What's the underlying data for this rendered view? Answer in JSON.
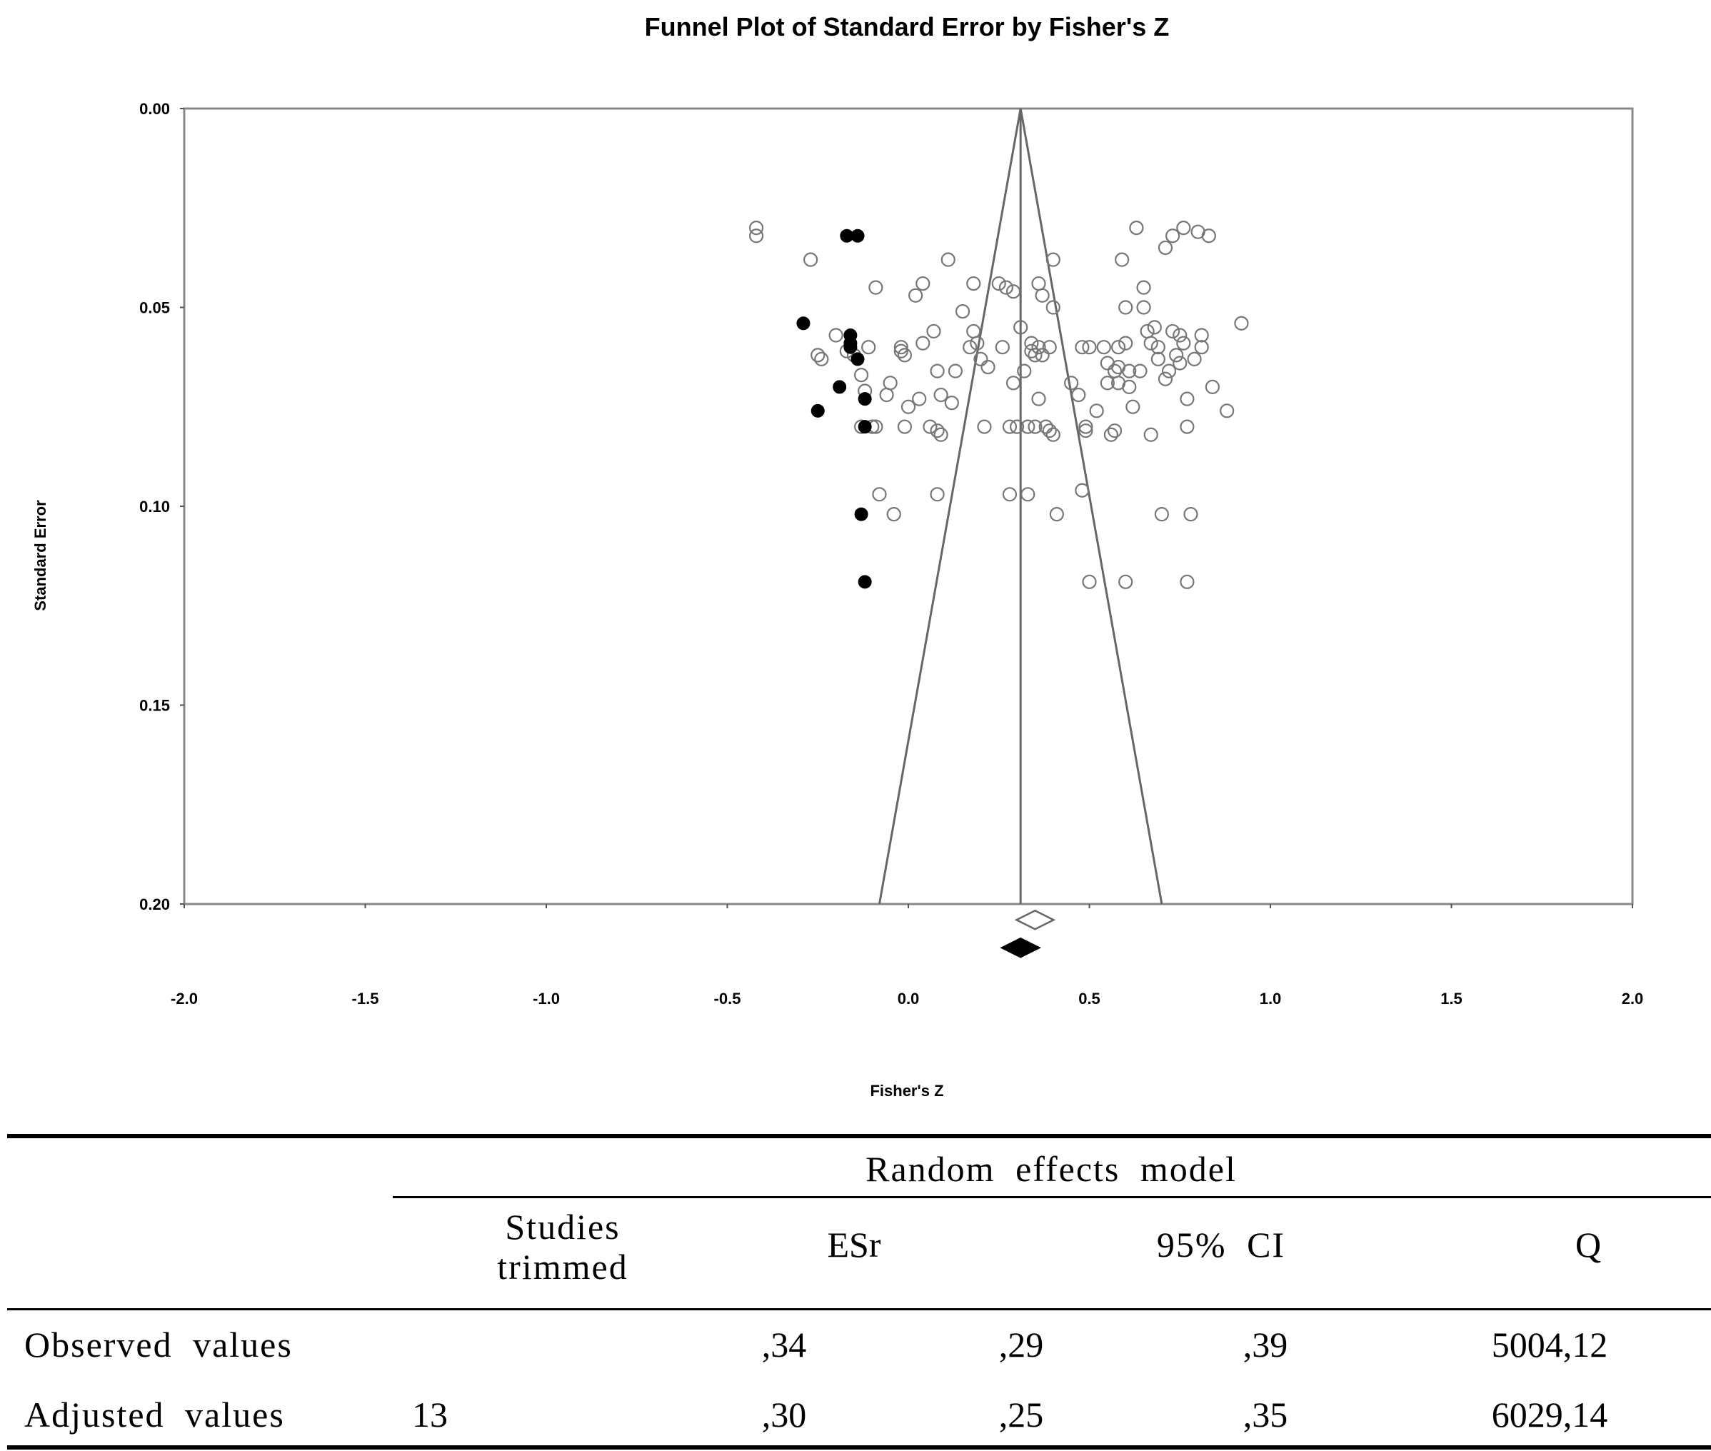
{
  "chart_data": {
    "type": "scatter",
    "title": "Funnel Plot of Standard Error by Fisher's Z",
    "xlabel": "Fisher's Z",
    "ylabel": "Standard Error",
    "xlim": [
      -2.0,
      2.0
    ],
    "ylim": [
      0.2,
      0.0
    ],
    "y_inverted": true,
    "x_ticks": [
      "-2.0",
      "-1.5",
      "-1.0",
      "-0.5",
      "0.0",
      "0.5",
      "1.0",
      "1.5",
      "2.0"
    ],
    "y_ticks": [
      "0.00",
      "0.05",
      "0.10",
      "0.15",
      "0.20"
    ],
    "grid": false,
    "funnel": {
      "center": 0.31,
      "apex_se": 0.0,
      "base_se": 0.2,
      "base_left": -0.08,
      "base_right": 0.7
    },
    "series": [
      {
        "marker": "open-circle",
        "points": [
          [
            -0.42,
            0.03
          ],
          [
            -0.42,
            0.032
          ],
          [
            -0.27,
            0.038
          ],
          [
            -0.25,
            0.062
          ],
          [
            -0.24,
            0.063
          ],
          [
            -0.2,
            0.057
          ],
          [
            -0.17,
            0.061
          ],
          [
            -0.15,
            0.062
          ],
          [
            -0.13,
            0.067
          ],
          [
            -0.13,
            0.08
          ],
          [
            -0.12,
            0.071
          ],
          [
            -0.11,
            0.06
          ],
          [
            -0.1,
            0.08
          ],
          [
            -0.09,
            0.08
          ],
          [
            -0.09,
            0.045
          ],
          [
            -0.08,
            0.097
          ],
          [
            -0.06,
            0.072
          ],
          [
            -0.05,
            0.069
          ],
          [
            -0.04,
            0.102
          ],
          [
            -0.02,
            0.06
          ],
          [
            -0.02,
            0.061
          ],
          [
            -0.01,
            0.062
          ],
          [
            -0.01,
            0.08
          ],
          [
            0.0,
            0.075
          ],
          [
            0.02,
            0.047
          ],
          [
            0.03,
            0.073
          ],
          [
            0.04,
            0.044
          ],
          [
            0.04,
            0.059
          ],
          [
            0.06,
            0.08
          ],
          [
            0.07,
            0.056
          ],
          [
            0.08,
            0.066
          ],
          [
            0.08,
            0.097
          ],
          [
            0.08,
            0.081
          ],
          [
            0.09,
            0.082
          ],
          [
            0.09,
            0.072
          ],
          [
            0.11,
            0.038
          ],
          [
            0.12,
            0.074
          ],
          [
            0.13,
            0.066
          ],
          [
            0.15,
            0.051
          ],
          [
            0.17,
            0.06
          ],
          [
            0.18,
            0.044
          ],
          [
            0.18,
            0.056
          ],
          [
            0.19,
            0.059
          ],
          [
            0.2,
            0.063
          ],
          [
            0.21,
            0.08
          ],
          [
            0.22,
            0.065
          ],
          [
            0.25,
            0.044
          ],
          [
            0.26,
            0.06
          ],
          [
            0.27,
            0.045
          ],
          [
            0.28,
            0.097
          ],
          [
            0.28,
            0.08
          ],
          [
            0.29,
            0.046
          ],
          [
            0.29,
            0.069
          ],
          [
            0.3,
            0.08
          ],
          [
            0.31,
            0.055
          ],
          [
            0.32,
            0.066
          ],
          [
            0.33,
            0.08
          ],
          [
            0.33,
            0.097
          ],
          [
            0.34,
            0.061
          ],
          [
            0.34,
            0.059
          ],
          [
            0.35,
            0.062
          ],
          [
            0.35,
            0.08
          ],
          [
            0.36,
            0.06
          ],
          [
            0.36,
            0.073
          ],
          [
            0.36,
            0.044
          ],
          [
            0.37,
            0.047
          ],
          [
            0.37,
            0.062
          ],
          [
            0.38,
            0.08
          ],
          [
            0.39,
            0.081
          ],
          [
            0.39,
            0.06
          ],
          [
            0.4,
            0.082
          ],
          [
            0.4,
            0.038
          ],
          [
            0.4,
            0.05
          ],
          [
            0.41,
            0.102
          ],
          [
            0.45,
            0.069
          ],
          [
            0.47,
            0.072
          ],
          [
            0.48,
            0.06
          ],
          [
            0.48,
            0.096
          ],
          [
            0.49,
            0.08
          ],
          [
            0.49,
            0.081
          ],
          [
            0.5,
            0.06
          ],
          [
            0.5,
            0.119
          ],
          [
            0.52,
            0.076
          ],
          [
            0.54,
            0.06
          ],
          [
            0.55,
            0.064
          ],
          [
            0.55,
            0.069
          ],
          [
            0.56,
            0.082
          ],
          [
            0.57,
            0.066
          ],
          [
            0.57,
            0.081
          ],
          [
            0.58,
            0.06
          ],
          [
            0.58,
            0.065
          ],
          [
            0.58,
            0.069
          ],
          [
            0.59,
            0.038
          ],
          [
            0.6,
            0.119
          ],
          [
            0.6,
            0.05
          ],
          [
            0.6,
            0.059
          ],
          [
            0.61,
            0.066
          ],
          [
            0.61,
            0.07
          ],
          [
            0.62,
            0.075
          ],
          [
            0.63,
            0.03
          ],
          [
            0.64,
            0.066
          ],
          [
            0.65,
            0.045
          ],
          [
            0.65,
            0.05
          ],
          [
            0.66,
            0.056
          ],
          [
            0.67,
            0.059
          ],
          [
            0.67,
            0.082
          ],
          [
            0.68,
            0.055
          ],
          [
            0.69,
            0.06
          ],
          [
            0.69,
            0.063
          ],
          [
            0.7,
            0.102
          ],
          [
            0.71,
            0.035
          ],
          [
            0.71,
            0.068
          ],
          [
            0.72,
            0.066
          ],
          [
            0.73,
            0.056
          ],
          [
            0.73,
            0.032
          ],
          [
            0.74,
            0.062
          ],
          [
            0.75,
            0.057
          ],
          [
            0.75,
            0.064
          ],
          [
            0.76,
            0.03
          ],
          [
            0.76,
            0.059
          ],
          [
            0.77,
            0.073
          ],
          [
            0.77,
            0.08
          ],
          [
            0.77,
            0.119
          ],
          [
            0.78,
            0.102
          ],
          [
            0.79,
            0.063
          ],
          [
            0.8,
            0.031
          ],
          [
            0.81,
            0.057
          ],
          [
            0.81,
            0.06
          ],
          [
            0.83,
            0.032
          ],
          [
            0.84,
            0.07
          ],
          [
            0.88,
            0.076
          ],
          [
            0.92,
            0.054
          ]
        ]
      },
      {
        "marker": "filled-circle",
        "points": [
          [
            -0.29,
            0.054
          ],
          [
            -0.25,
            0.076
          ],
          [
            -0.19,
            0.07
          ],
          [
            -0.17,
            0.032
          ],
          [
            -0.16,
            0.059
          ],
          [
            -0.16,
            0.057
          ],
          [
            -0.14,
            0.032
          ],
          [
            -0.14,
            0.063
          ],
          [
            -0.13,
            0.102
          ],
          [
            -0.12,
            0.073
          ],
          [
            -0.12,
            0.08
          ],
          [
            -0.12,
            0.119
          ],
          [
            -0.16,
            0.06
          ]
        ]
      }
    ],
    "summary_markers": [
      {
        "fill": "open",
        "x": 0.35,
        "se": 0.204
      },
      {
        "fill": "filled",
        "x": 0.31,
        "se": 0.211
      }
    ]
  },
  "table": {
    "group_header": "Random effects model",
    "columns": [
      "Studies trimmed",
      "ESr",
      "95% CI",
      "Q"
    ],
    "rows": [
      {
        "label": "Observed values",
        "trimmed": "",
        "esr": ",34",
        "ci_low": ",29",
        "ci_high": ",39",
        "q": "5004,12"
      },
      {
        "label": "Adjusted values",
        "trimmed": "13",
        "esr": ",30",
        "ci_low": ",25",
        "ci_high": ",35",
        "q": "6029,14"
      }
    ]
  }
}
